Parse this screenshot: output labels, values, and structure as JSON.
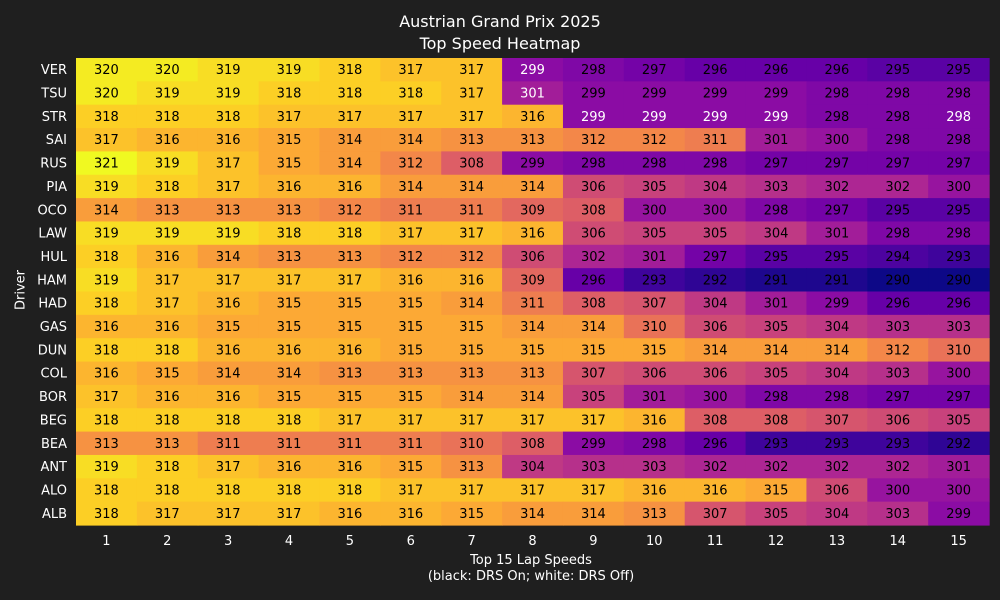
{
  "chart_data": {
    "type": "heatmap",
    "title": "Austrian Grand Prix 2025",
    "subtitle": "Top Speed Heatmap",
    "xlabel": "Top 15 Lap Speeds",
    "xlabel_note": "(black: DRS On; white: DRS Off)",
    "ylabel": "Driver",
    "x": [
      "1",
      "2",
      "3",
      "4",
      "5",
      "6",
      "7",
      "8",
      "9",
      "10",
      "11",
      "12",
      "13",
      "14",
      "15"
    ],
    "y": [
      "VER",
      "TSU",
      "STR",
      "SAI",
      "RUS",
      "PIA",
      "OCO",
      "LAW",
      "HUL",
      "HAM",
      "HAD",
      "GAS",
      "DUN",
      "COL",
      "BOR",
      "BEG",
      "BEA",
      "ANT",
      "ALO",
      "ALB"
    ],
    "colormap": "plasma",
    "value_range": [
      290,
      321
    ],
    "values": [
      [
        320,
        320,
        319,
        319,
        318,
        317,
        317,
        299,
        298,
        297,
        296,
        296,
        296,
        295,
        295
      ],
      [
        320,
        319,
        319,
        318,
        318,
        318,
        317,
        301,
        299,
        299,
        299,
        299,
        298,
        298,
        298
      ],
      [
        318,
        318,
        318,
        317,
        317,
        317,
        317,
        316,
        299,
        299,
        299,
        299,
        298,
        298,
        298
      ],
      [
        317,
        316,
        316,
        315,
        314,
        314,
        313,
        313,
        312,
        312,
        311,
        301,
        300,
        298,
        298
      ],
      [
        321,
        319,
        317,
        315,
        314,
        312,
        308,
        299,
        298,
        298,
        298,
        297,
        297,
        297,
        297
      ],
      [
        319,
        318,
        317,
        316,
        316,
        314,
        314,
        314,
        306,
        305,
        304,
        303,
        302,
        302,
        300
      ],
      [
        314,
        313,
        313,
        313,
        312,
        311,
        311,
        309,
        308,
        300,
        300,
        298,
        297,
        295,
        295
      ],
      [
        319,
        319,
        319,
        318,
        318,
        317,
        317,
        316,
        306,
        305,
        305,
        304,
        301,
        298,
        298
      ],
      [
        318,
        316,
        314,
        313,
        313,
        312,
        312,
        306,
        302,
        301,
        297,
        295,
        295,
        294,
        293
      ],
      [
        319,
        317,
        317,
        317,
        317,
        316,
        316,
        309,
        296,
        293,
        292,
        291,
        291,
        290,
        290
      ],
      [
        318,
        317,
        316,
        315,
        315,
        315,
        314,
        311,
        308,
        307,
        304,
        301,
        299,
        296,
        296
      ],
      [
        316,
        316,
        315,
        315,
        315,
        315,
        315,
        314,
        314,
        310,
        306,
        305,
        304,
        303,
        303
      ],
      [
        318,
        318,
        316,
        316,
        316,
        315,
        315,
        315,
        315,
        315,
        314,
        314,
        314,
        312,
        310
      ],
      [
        316,
        315,
        314,
        314,
        313,
        313,
        313,
        313,
        307,
        306,
        306,
        305,
        304,
        303,
        300
      ],
      [
        317,
        316,
        316,
        315,
        315,
        315,
        314,
        314,
        305,
        301,
        300,
        298,
        298,
        297,
        297
      ],
      [
        318,
        318,
        318,
        318,
        317,
        317,
        317,
        317,
        317,
        316,
        308,
        308,
        307,
        306,
        305
      ],
      [
        313,
        313,
        311,
        311,
        311,
        311,
        310,
        308,
        299,
        298,
        296,
        293,
        293,
        293,
        292
      ],
      [
        319,
        318,
        317,
        316,
        316,
        315,
        313,
        304,
        303,
        303,
        302,
        302,
        302,
        302,
        301
      ],
      [
        318,
        318,
        318,
        318,
        318,
        317,
        317,
        317,
        317,
        316,
        316,
        315,
        306,
        300,
        300
      ],
      [
        318,
        317,
        317,
        317,
        316,
        316,
        315,
        314,
        314,
        313,
        307,
        305,
        304,
        303,
        299
      ]
    ],
    "drs_on": [
      [
        true,
        true,
        true,
        true,
        true,
        true,
        true,
        false,
        true,
        true,
        true,
        true,
        true,
        true,
        true
      ],
      [
        true,
        true,
        true,
        true,
        true,
        true,
        true,
        false,
        true,
        true,
        true,
        true,
        true,
        true,
        true
      ],
      [
        true,
        true,
        true,
        true,
        true,
        true,
        true,
        true,
        false,
        false,
        false,
        false,
        true,
        true,
        false
      ],
      [
        true,
        true,
        true,
        true,
        true,
        true,
        true,
        true,
        true,
        true,
        true,
        true,
        true,
        true,
        true
      ],
      [
        true,
        true,
        true,
        true,
        true,
        true,
        true,
        true,
        true,
        true,
        true,
        true,
        true,
        true,
        true
      ],
      [
        true,
        true,
        true,
        true,
        true,
        true,
        true,
        true,
        true,
        true,
        true,
        true,
        true,
        true,
        true
      ],
      [
        true,
        true,
        true,
        true,
        true,
        true,
        true,
        true,
        true,
        true,
        true,
        true,
        true,
        true,
        true
      ],
      [
        true,
        true,
        true,
        true,
        true,
        true,
        true,
        true,
        true,
        true,
        true,
        true,
        true,
        true,
        true
      ],
      [
        true,
        true,
        true,
        true,
        true,
        true,
        true,
        true,
        true,
        true,
        true,
        true,
        true,
        true,
        true
      ],
      [
        true,
        true,
        true,
        true,
        true,
        true,
        true,
        true,
        true,
        true,
        true,
        true,
        true,
        true,
        true
      ],
      [
        true,
        true,
        true,
        true,
        true,
        true,
        true,
        true,
        true,
        true,
        true,
        true,
        true,
        true,
        true
      ],
      [
        true,
        true,
        true,
        true,
        true,
        true,
        true,
        true,
        true,
        true,
        true,
        true,
        true,
        true,
        true
      ],
      [
        true,
        true,
        true,
        true,
        true,
        true,
        true,
        true,
        true,
        true,
        true,
        true,
        true,
        true,
        true
      ],
      [
        true,
        true,
        true,
        true,
        true,
        true,
        true,
        true,
        true,
        true,
        true,
        true,
        true,
        true,
        true
      ],
      [
        true,
        true,
        true,
        true,
        true,
        true,
        true,
        true,
        true,
        true,
        true,
        true,
        true,
        true,
        true
      ],
      [
        true,
        true,
        true,
        true,
        true,
        true,
        true,
        true,
        true,
        true,
        true,
        true,
        true,
        true,
        true
      ],
      [
        true,
        true,
        true,
        true,
        true,
        true,
        true,
        true,
        true,
        true,
        true,
        true,
        true,
        true,
        true
      ],
      [
        true,
        true,
        true,
        true,
        true,
        true,
        true,
        true,
        true,
        true,
        true,
        true,
        true,
        true,
        true
      ],
      [
        true,
        true,
        true,
        true,
        true,
        true,
        true,
        true,
        true,
        true,
        true,
        true,
        true,
        true,
        true
      ],
      [
        true,
        true,
        true,
        true,
        true,
        true,
        true,
        true,
        true,
        true,
        true,
        true,
        true,
        true,
        true
      ]
    ],
    "grid": false,
    "legend": "none"
  },
  "colors": {
    "background": "#1f1f1f",
    "text": "#ffffff",
    "drs_on_text": "#000000",
    "drs_off_text": "#ffffff"
  }
}
